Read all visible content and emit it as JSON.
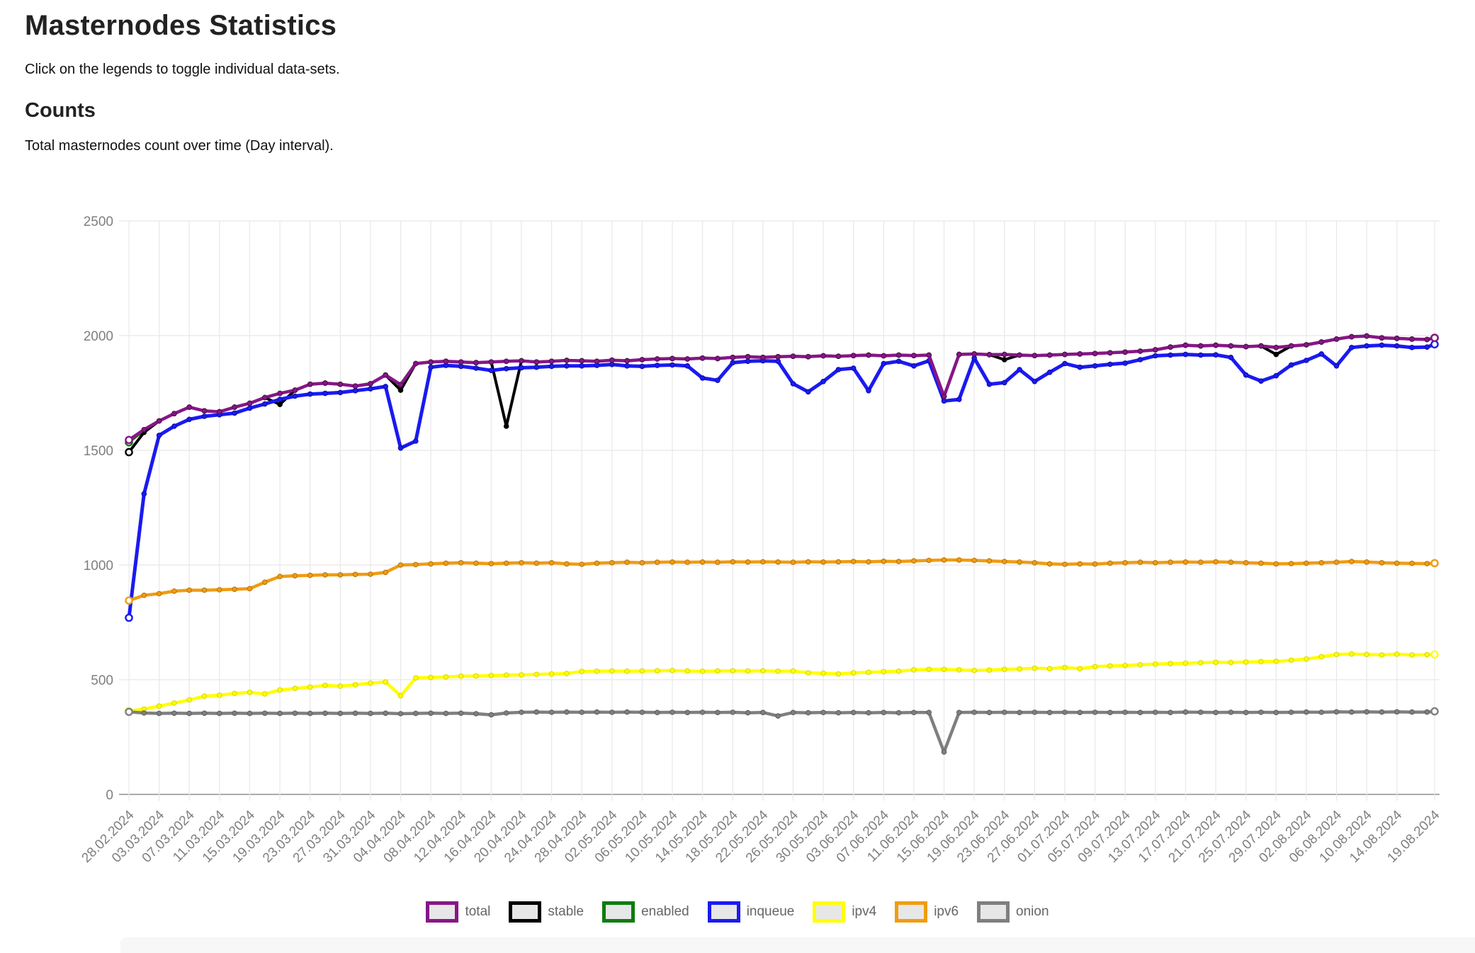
{
  "page": {
    "title": "Masternodes Statistics",
    "subtitle": "Click on the legends to toggle individual data-sets.",
    "section_heading": "Counts",
    "section_description": "Total masternodes count over time (Day interval)."
  },
  "chart_data": {
    "type": "line",
    "title": "Counts",
    "grid": true,
    "legend_position": "bottom",
    "ylim": [
      0,
      2500
    ],
    "y_ticks": [
      0,
      500,
      1000,
      1500,
      2000,
      2500
    ],
    "x_total_days": 173,
    "sample_step_days": 2,
    "x_tick_days": [
      0,
      4,
      8,
      12,
      16,
      20,
      24,
      28,
      32,
      36,
      40,
      44,
      48,
      52,
      56,
      60,
      64,
      68,
      72,
      76,
      80,
      84,
      88,
      92,
      96,
      100,
      104,
      108,
      112,
      116,
      120,
      124,
      128,
      132,
      136,
      140,
      144,
      148,
      152,
      156,
      160,
      164,
      168,
      173
    ],
    "x_tick_labels": [
      "28.02.2024",
      "03.03.2024",
      "07.03.2024",
      "11.03.2024",
      "15.03.2024",
      "19.03.2024",
      "23.03.2024",
      "27.03.2024",
      "31.03.2024",
      "04.04.2024",
      "08.04.2024",
      "12.04.2024",
      "16.04.2024",
      "20.04.2024",
      "24.04.2024",
      "28.04.2024",
      "02.05.2024",
      "06.05.2024",
      "10.05.2024",
      "14.05.2024",
      "18.05.2024",
      "22.05.2024",
      "26.05.2024",
      "30.05.2024",
      "03.06.2024",
      "07.06.2024",
      "11.06.2024",
      "15.06.2024",
      "19.06.2024",
      "23.06.2024",
      "27.06.2024",
      "01.07.2024",
      "05.07.2024",
      "09.07.2024",
      "13.07.2024",
      "17.07.2024",
      "21.07.2024",
      "25.07.2024",
      "29.07.2024",
      "02.08.2024",
      "06.08.2024",
      "10.08.2024",
      "14.08.2024",
      "19.08.2024"
    ],
    "draw_order": [
      "enabled",
      "stable",
      "inqueue",
      "total",
      "ipv4",
      "ipv6",
      "onion"
    ],
    "series": [
      {
        "name": "total",
        "color": "#871687",
        "point_border": "#4d0c4d",
        "width": 4.5,
        "values": [
          1545,
          1590,
          1628,
          1660,
          1688,
          1672,
          1668,
          1688,
          1705,
          1730,
          1748,
          1762,
          1788,
          1793,
          1788,
          1780,
          1790,
          1828,
          1786,
          1878,
          1885,
          1888,
          1885,
          1882,
          1885,
          1888,
          1890,
          1885,
          1888,
          1892,
          1890,
          1888,
          1893,
          1890,
          1895,
          1898,
          1900,
          1898,
          1902,
          1900,
          1905,
          1908,
          1905,
          1908,
          1910,
          1908,
          1912,
          1910,
          1913,
          1915,
          1912,
          1915,
          1913,
          1915,
          1735,
          1918,
          1920,
          1917,
          1918,
          1915,
          1913,
          1915,
          1918,
          1920,
          1922,
          1925,
          1928,
          1932,
          1938,
          1950,
          1958,
          1955,
          1958,
          1955,
          1952,
          1955,
          1948,
          1955,
          1960,
          1972,
          1985,
          1995,
          1998,
          1990,
          1988,
          1985,
          1983,
          1990
        ]
      },
      {
        "name": "stable",
        "color": "#000000",
        "point_border": "#000000",
        "width": 4,
        "values": [
          1492,
          1578,
          1628,
          1660,
          1688,
          1672,
          1668,
          1688,
          1705,
          1730,
          1700,
          1762,
          1788,
          1793,
          1788,
          1780,
          1790,
          1828,
          1762,
          1878,
          1885,
          1888,
          1885,
          1882,
          1885,
          1605,
          1890,
          1885,
          1888,
          1892,
          1890,
          1888,
          1893,
          1890,
          1895,
          1898,
          1900,
          1898,
          1902,
          1900,
          1905,
          1908,
          1905,
          1908,
          1910,
          1908,
          1912,
          1910,
          1913,
          1915,
          1912,
          1915,
          1913,
          1915,
          1735,
          1918,
          1920,
          1917,
          1895,
          1915,
          1913,
          1915,
          1918,
          1920,
          1922,
          1925,
          1928,
          1932,
          1938,
          1950,
          1958,
          1955,
          1958,
          1955,
          1952,
          1955,
          1918,
          1955,
          1960,
          1972,
          1985,
          1995,
          1998,
          1990,
          1988,
          1985,
          1983,
          1990
        ]
      },
      {
        "name": "enabled",
        "color": "#0e7c0e",
        "point_border": "#085708",
        "width": 4,
        "values": [
          1535,
          1588,
          1628,
          1660,
          1688,
          1672,
          1668,
          1688,
          1705,
          1730,
          1748,
          1762,
          1788,
          1793,
          1788,
          1780,
          1790,
          1828,
          1786,
          1878,
          1885,
          1888,
          1885,
          1882,
          1885,
          1888,
          1890,
          1885,
          1888,
          1892,
          1890,
          1888,
          1893,
          1890,
          1895,
          1898,
          1900,
          1898,
          1902,
          1900,
          1905,
          1908,
          1905,
          1908,
          1910,
          1908,
          1912,
          1910,
          1913,
          1915,
          1912,
          1915,
          1913,
          1915,
          1735,
          1918,
          1920,
          1917,
          1918,
          1915,
          1913,
          1915,
          1918,
          1920,
          1922,
          1925,
          1928,
          1932,
          1938,
          1950,
          1958,
          1955,
          1958,
          1955,
          1952,
          1955,
          1948,
          1955,
          1960,
          1972,
          1985,
          1995,
          1998,
          1990,
          1988,
          1985,
          1983,
          1990
        ]
      },
      {
        "name": "inqueue",
        "color": "#1a1af2",
        "point_border": "#0c0ca5",
        "width": 5,
        "values": [
          770,
          1310,
          1565,
          1605,
          1635,
          1648,
          1655,
          1662,
          1684,
          1702,
          1722,
          1736,
          1745,
          1748,
          1752,
          1760,
          1768,
          1778,
          1510,
          1540,
          1862,
          1870,
          1866,
          1858,
          1848,
          1856,
          1860,
          1862,
          1866,
          1868,
          1868,
          1870,
          1874,
          1868,
          1866,
          1870,
          1872,
          1868,
          1815,
          1805,
          1882,
          1888,
          1890,
          1888,
          1790,
          1755,
          1800,
          1852,
          1858,
          1760,
          1878,
          1888,
          1868,
          1890,
          1715,
          1722,
          1902,
          1788,
          1795,
          1852,
          1800,
          1840,
          1878,
          1862,
          1868,
          1875,
          1880,
          1895,
          1912,
          1915,
          1918,
          1915,
          1916,
          1905,
          1828,
          1802,
          1825,
          1872,
          1892,
          1920,
          1868,
          1948,
          1955,
          1958,
          1955,
          1948,
          1950,
          1962
        ]
      },
      {
        "name": "ipv4",
        "color": "#ffff00",
        "point_border": "#d9d200",
        "width": 4.5,
        "values": [
          363,
          372,
          385,
          398,
          412,
          428,
          432,
          440,
          445,
          438,
          455,
          462,
          468,
          475,
          472,
          478,
          485,
          490,
          430,
          508,
          510,
          512,
          515,
          516,
          518,
          520,
          521,
          523,
          525,
          527,
          536,
          537,
          538,
          537,
          538,
          539,
          540,
          538,
          537,
          538,
          539,
          538,
          539,
          537,
          538,
          530,
          528,
          525,
          530,
          532,
          535,
          537,
          543,
          545,
          545,
          543,
          540,
          542,
          545,
          547,
          550,
          548,
          553,
          548,
          557,
          560,
          562,
          565,
          568,
          570,
          572,
          574,
          576,
          575,
          577,
          579,
          580,
          585,
          590,
          600,
          610,
          612,
          610,
          608,
          611,
          608,
          609,
          610
        ]
      },
      {
        "name": "ipv6",
        "color": "#f09c12",
        "point_border": "#b5740a",
        "width": 4.5,
        "values": [
          845,
          868,
          875,
          886,
          890,
          890,
          892,
          894,
          897,
          925,
          950,
          953,
          955,
          957,
          957,
          959,
          960,
          968,
          1000,
          1002,
          1005,
          1008,
          1010,
          1008,
          1006,
          1008,
          1010,
          1008,
          1010,
          1005,
          1003,
          1008,
          1010,
          1012,
          1010,
          1012,
          1013,
          1012,
          1013,
          1012,
          1014,
          1013,
          1014,
          1013,
          1012,
          1014,
          1013,
          1014,
          1015,
          1014,
          1016,
          1015,
          1018,
          1020,
          1022,
          1022,
          1020,
          1018,
          1015,
          1013,
          1010,
          1005,
          1003,
          1005,
          1004,
          1008,
          1010,
          1012,
          1010,
          1012,
          1013,
          1012,
          1014,
          1012,
          1010,
          1008,
          1005,
          1006,
          1008,
          1010,
          1012,
          1015,
          1013,
          1010,
          1008,
          1007,
          1006,
          1008
        ]
      },
      {
        "name": "onion",
        "color": "#7f7f7f",
        "point_border": "#5e5e5e",
        "width": 4.5,
        "values": [
          360,
          355,
          353,
          354,
          353,
          354,
          353,
          354,
          353,
          354,
          353,
          354,
          353,
          354,
          353,
          354,
          353,
          354,
          352,
          353,
          354,
          353,
          354,
          352,
          347,
          355,
          358,
          359,
          358,
          359,
          358,
          359,
          358,
          359,
          358,
          357,
          358,
          357,
          358,
          357,
          358,
          356,
          357,
          342,
          357,
          356,
          357,
          356,
          357,
          356,
          357,
          356,
          357,
          357,
          185,
          357,
          358,
          357,
          358,
          357,
          358,
          357,
          358,
          357,
          358,
          357,
          358,
          357,
          358,
          357,
          359,
          358,
          357,
          358,
          357,
          358,
          357,
          358,
          359,
          358,
          360,
          359,
          360,
          359,
          360,
          359,
          359,
          362
        ]
      }
    ]
  },
  "legend": {
    "items": [
      "total",
      "stable",
      "enabled",
      "inqueue",
      "ipv4",
      "ipv6",
      "onion"
    ]
  }
}
